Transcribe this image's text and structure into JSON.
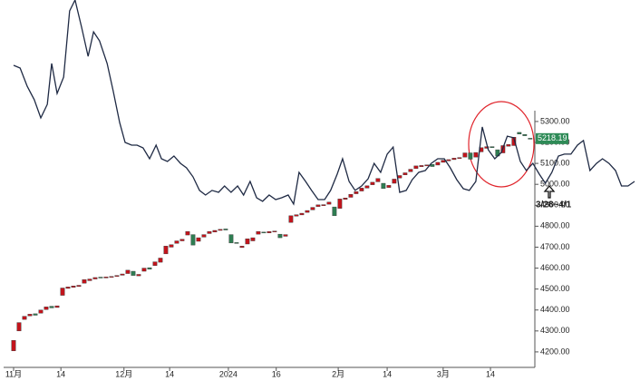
{
  "chart_data": {
    "type": "candlestick",
    "xlim": [
      -2.5,
      115.2
    ],
    "ylim": [
      4126,
      5880
    ],
    "xticks": [
      {
        "value": 0,
        "label": "11月"
      },
      {
        "value": 8.7,
        "label": "14"
      },
      {
        "value": 20.3,
        "label": "12月"
      },
      {
        "value": 28.7,
        "label": "14"
      },
      {
        "value": 39.5,
        "label": "2024"
      },
      {
        "value": 48.3,
        "label": "16"
      },
      {
        "value": 59.7,
        "label": "2月"
      },
      {
        "value": 68.7,
        "label": "14"
      },
      {
        "value": 79,
        "label": "3月"
      },
      {
        "value": 87.7,
        "label": "14"
      }
    ],
    "yticks": [
      {
        "value": 4200,
        "label": "4200.00"
      },
      {
        "value": 4300,
        "label": "4300.00"
      },
      {
        "value": 4400,
        "label": "4400.00"
      },
      {
        "value": 4500,
        "label": "4500.00"
      },
      {
        "value": 4600,
        "label": "4600.00"
      },
      {
        "value": 4700,
        "label": "4700.00"
      },
      {
        "value": 4800,
        "label": "4800.00"
      },
      {
        "value": 4900,
        "label": "4900.00"
      },
      {
        "value": 5000,
        "label": "5000.00"
      },
      {
        "value": 5100,
        "label": "5100.00"
      },
      {
        "value": 5200,
        "label": "5200.00"
      },
      {
        "value": 5300,
        "label": "5300.00"
      }
    ],
    "candles": {
      "up_color": "#c2141c",
      "down_color": "#2e7d52",
      "x": [
        0,
        1,
        2,
        3,
        4,
        5,
        6,
        7,
        8,
        9,
        10,
        11,
        12,
        13,
        14,
        15,
        16,
        17,
        18,
        19,
        20,
        21,
        22,
        23,
        24,
        25,
        26,
        27,
        28,
        29,
        30,
        31,
        32,
        33,
        34,
        35,
        36,
        37,
        38,
        39,
        40,
        41,
        42,
        43,
        44,
        45,
        46,
        47,
        48,
        49,
        50,
        51,
        52,
        53,
        54,
        55,
        56,
        57,
        58,
        59,
        60,
        61,
        62,
        63,
        64,
        65,
        66,
        67,
        68,
        69,
        70,
        71,
        72,
        73,
        74,
        75,
        76,
        77,
        78,
        79,
        80,
        81,
        82,
        83,
        84,
        85,
        86,
        87,
        88,
        89,
        90,
        91,
        92,
        93,
        94,
        95
      ],
      "open": [
        4205,
        4300,
        4355,
        4372,
        4382,
        4385,
        4402,
        4418,
        4412,
        4470,
        4503,
        4508,
        4512,
        4528,
        4540,
        4548,
        4557,
        4553,
        4556,
        4560,
        4566,
        4574,
        4585,
        4563,
        4585,
        4602,
        4612,
        4628,
        4668,
        4700,
        4718,
        4730,
        4758,
        4760,
        4728,
        4748,
        4765,
        4772,
        4780,
        4787,
        4760,
        4722,
        4698,
        4715,
        4730,
        4762,
        4772,
        4768,
        4773,
        4762,
        4752,
        4818,
        4848,
        4854,
        4866,
        4878,
        4894,
        4898,
        4905,
        4892,
        4885,
        4928,
        4938,
        4955,
        4968,
        4982,
        4998,
        5012,
        5005,
        4985,
        5005,
        5030,
        5045,
        5060,
        5075,
        5084,
        5088,
        5095,
        5092,
        5105,
        5112,
        5118,
        5123,
        5130,
        5150,
        5130,
        5155,
        5172,
        5180,
        5165,
        5150,
        5182,
        5185,
        5248,
        5238,
        5220
      ],
      "close": [
        4255,
        4340,
        4370,
        4380,
        4375,
        4400,
        4415,
        4410,
        4420,
        4505,
        4510,
        4515,
        4518,
        4545,
        4548,
        4555,
        4553,
        4558,
        4560,
        4565,
        4572,
        4590,
        4565,
        4570,
        4600,
        4595,
        4630,
        4648,
        4705,
        4712,
        4730,
        4738,
        4775,
        4710,
        4745,
        4760,
        4775,
        4780,
        4785,
        4782,
        4720,
        4718,
        4705,
        4740,
        4745,
        4775,
        4768,
        4775,
        4777,
        4745,
        4760,
        4850,
        4855,
        4862,
        4875,
        4890,
        4902,
        4903,
        4915,
        4850,
        4930,
        4935,
        4952,
        4965,
        4982,
        4993,
        5010,
        5028,
        4980,
        4995,
        5025,
        5042,
        5055,
        5072,
        5088,
        5090,
        5093,
        5085,
        5105,
        5115,
        5118,
        5125,
        5128,
        5150,
        5120,
        5152,
        5175,
        5180,
        5175,
        5135,
        5185,
        5190,
        5225,
        5240,
        5232,
        5218
      ]
    },
    "line": {
      "color": "#1f2a44",
      "x": [
        0,
        1.2,
        2.5,
        3.8,
        5,
        6.2,
        7,
        8,
        9.2,
        10.3,
        11.3,
        12.5,
        13.7,
        14.7,
        15.8,
        17.2,
        18.3,
        19.5,
        20.5,
        21.7,
        22.7,
        23.8,
        25,
        26.2,
        27.2,
        28.3,
        29.5,
        30.7,
        31.8,
        33,
        34.2,
        35.3,
        36.5,
        37.7,
        38.8,
        40,
        41.2,
        42.3,
        43.5,
        44.7,
        45.8,
        47,
        48.2,
        49.3,
        50.5,
        51.5,
        52.5,
        53.7,
        54.8,
        56,
        57.2,
        58.3,
        59.5,
        60.5,
        61.7,
        62.8,
        64,
        65.2,
        66.3,
        67.5,
        68.7,
        69.8,
        71,
        72.2,
        73.3,
        74.5,
        75.7,
        76.8,
        78,
        79.2,
        80.3,
        81.5,
        82.7,
        83.8,
        85,
        86.2,
        87.3,
        88.5,
        89.7,
        90.8,
        92,
        93.2,
        94.3,
        95.5,
        96.7,
        97.8,
        99,
        100.2,
        101.3,
        102.5,
        103.7,
        104.8,
        106,
        107.2,
        108.3,
        109.5,
        110.7,
        111.8,
        113,
        114.2
      ],
      "values": [
        5568,
        5555,
        5468,
        5404,
        5317,
        5382,
        5577,
        5434,
        5512,
        5828,
        5880,
        5750,
        5611,
        5728,
        5685,
        5577,
        5447,
        5295,
        5200,
        5187,
        5187,
        5174,
        5122,
        5187,
        5122,
        5109,
        5135,
        5100,
        5079,
        5036,
        4971,
        4949,
        4971,
        4962,
        4992,
        4962,
        4992,
        4949,
        5014,
        4936,
        4919,
        4949,
        4927,
        4936,
        4949,
        4906,
        5057,
        5014,
        4971,
        4927,
        4927,
        4971,
        5048,
        5122,
        5014,
        4971,
        4992,
        5027,
        5100,
        5057,
        5144,
        5178,
        4962,
        4971,
        5022,
        5057,
        5066,
        5100,
        5122,
        5122,
        5079,
        5022,
        4979,
        4971,
        5014,
        5274,
        5165,
        5122,
        5152,
        5230,
        5222,
        5109,
        5066,
        5100,
        5048,
        5005,
        5057,
        5135,
        5144,
        5144,
        5187,
        5209,
        5066,
        5100,
        5122,
        5100,
        5066,
        4992,
        4992,
        5014
      ]
    },
    "annotations": [
      {
        "value": 5218.19,
        "label": "5218.19",
        "color": "#2e8b57"
      },
      {
        "label": "3/28~4/1"
      }
    ]
  }
}
